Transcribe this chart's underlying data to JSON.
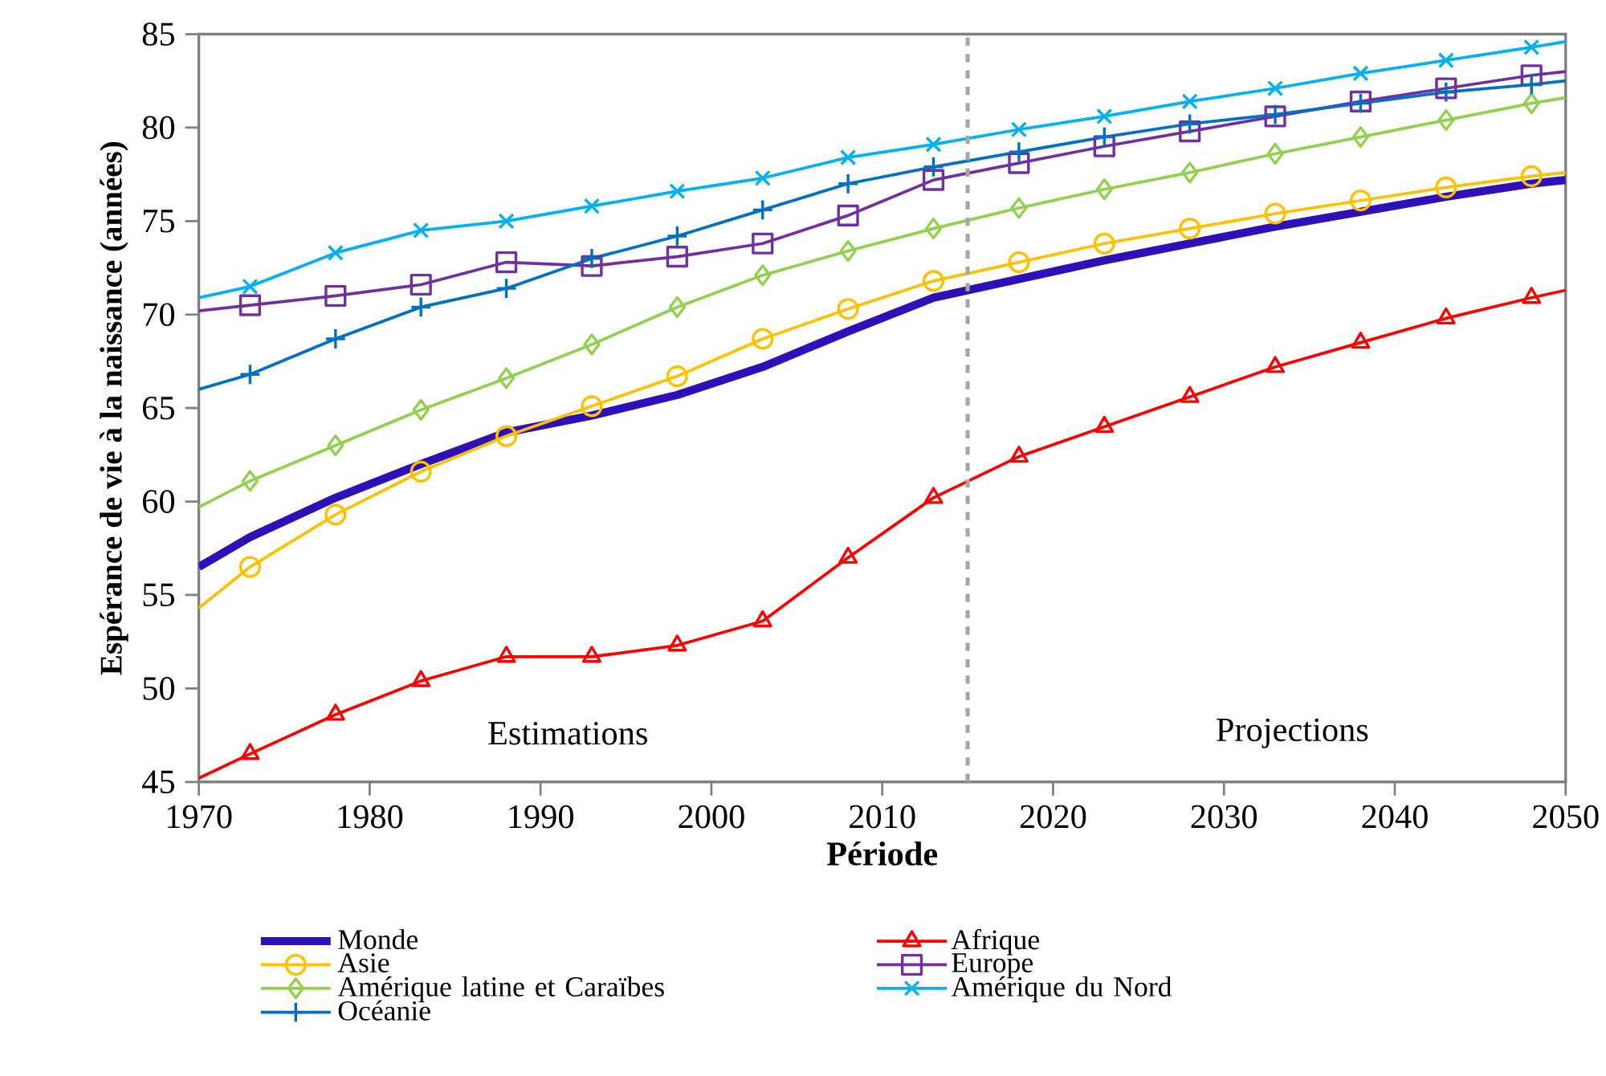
{
  "chart_data": {
    "type": "line",
    "xlabel": "Période",
    "ylabel": "Espérance de vie à la naissance (années)",
    "x": [
      1970,
      1973,
      1978,
      1983,
      1988,
      1993,
      1998,
      2003,
      2008,
      2013,
      2018,
      2023,
      2028,
      2033,
      2038,
      2043,
      2048,
      2050
    ],
    "series": [
      {
        "name": "Monde",
        "color": "#2e0fb8",
        "marker": "none",
        "values": [
          56.5,
          58.1,
          60.2,
          62.0,
          63.7,
          64.6,
          65.7,
          67.2,
          69.1,
          70.9,
          71.9,
          72.9,
          73.8,
          74.7,
          75.5,
          76.3,
          77.0,
          77.2
        ]
      },
      {
        "name": "Afrique",
        "color": "#ff0000",
        "marker": "triangle",
        "values": [
          45.2,
          46.5,
          48.6,
          50.4,
          51.7,
          51.7,
          52.3,
          53.6,
          57.0,
          60.2,
          62.4,
          64.0,
          65.6,
          67.2,
          68.5,
          69.8,
          70.9,
          71.3
        ]
      },
      {
        "name": "Asie",
        "color": "#ffc000",
        "marker": "circle",
        "values": [
          54.3,
          56.5,
          59.3,
          61.6,
          63.5,
          65.1,
          66.7,
          68.7,
          70.3,
          71.8,
          72.8,
          73.8,
          74.6,
          75.4,
          76.1,
          76.8,
          77.4,
          77.6
        ]
      },
      {
        "name": "Europe",
        "color": "#7030a0",
        "marker": "square",
        "values": [
          70.2,
          70.5,
          71.0,
          71.6,
          72.8,
          72.6,
          73.1,
          73.8,
          75.3,
          77.2,
          78.1,
          79.0,
          79.8,
          80.6,
          81.4,
          82.1,
          82.8,
          83.0
        ]
      },
      {
        "name": "Amérique latine et Caraïbes",
        "color": "#92d050",
        "marker": "diamond",
        "values": [
          59.7,
          61.1,
          63.0,
          64.9,
          66.6,
          68.4,
          70.4,
          72.1,
          73.4,
          74.6,
          75.7,
          76.7,
          77.6,
          78.6,
          79.5,
          80.4,
          81.3,
          81.6
        ]
      },
      {
        "name": "Amérique du Nord",
        "color": "#00b0f0",
        "marker": "cross",
        "values": [
          70.9,
          71.5,
          73.3,
          74.5,
          75.0,
          75.8,
          76.6,
          77.3,
          78.4,
          79.1,
          79.9,
          80.6,
          81.4,
          82.1,
          82.9,
          83.6,
          84.3,
          84.6
        ]
      },
      {
        "name": "Océanie",
        "color": "#0070c0",
        "marker": "plus",
        "values": [
          66.0,
          66.8,
          68.7,
          70.4,
          71.4,
          73.0,
          74.2,
          75.6,
          77.0,
          77.9,
          78.7,
          79.5,
          80.2,
          80.7,
          81.3,
          81.9,
          82.3,
          82.5
        ]
      }
    ],
    "xlim": [
      1970,
      2050
    ],
    "xticks": [
      1970,
      1980,
      1990,
      2000,
      2010,
      2020,
      2030,
      2040,
      2050
    ],
    "ylim": [
      45,
      85
    ],
    "yticks": [
      45,
      50,
      55,
      60,
      65,
      70,
      75,
      80,
      85
    ],
    "ref_lines": [
      {
        "axis": "x",
        "value": 2015,
        "color": "#a6a6a6",
        "line_style": "dashed"
      }
    ],
    "annotations": [
      "Estimations",
      "Projections"
    ],
    "legend": "bottom",
    "grid": false,
    "line_style": "solid"
  }
}
